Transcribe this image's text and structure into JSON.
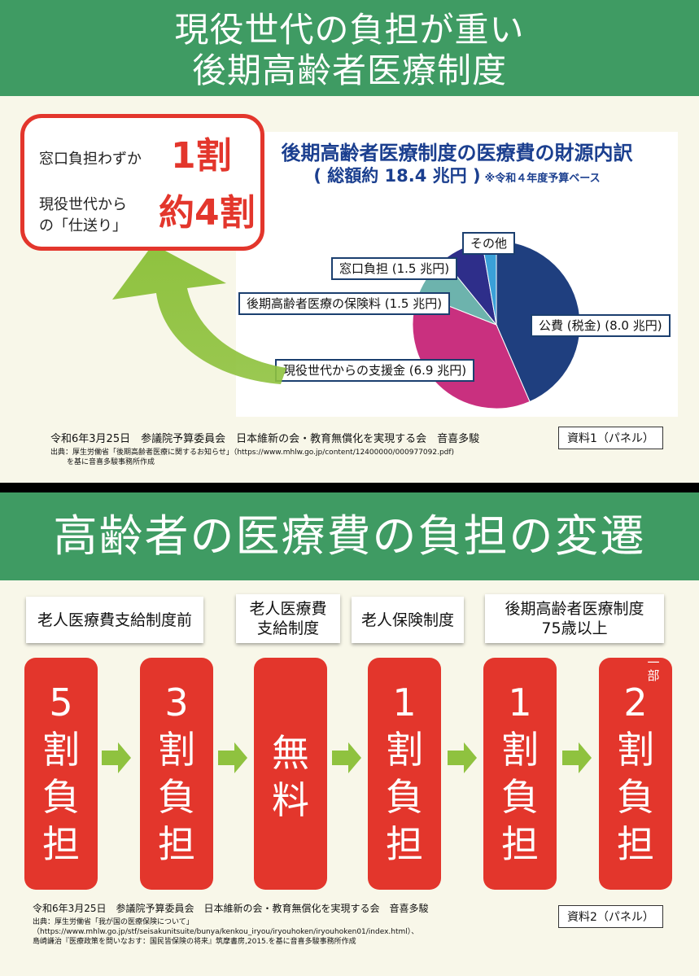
{
  "panel1": {
    "title_line1": "現役世代の負担が重い",
    "title_line2": "後期高齢者医療制度",
    "callout": {
      "row1_label": "窓口負担わずか",
      "row1_value": "1割",
      "row2_label_line1": "現役世代から",
      "row2_label_line2": "の「仕送り」",
      "row2_value": "約4割"
    },
    "chart_title_line1": "後期高齢者医療制度の医療費の財源内訳",
    "chart_title_line2": "( 総額約 18.4 兆円 )",
    "chart_note": "※令和４年度予算ベース",
    "footer_line": "令和6年3月25日　参議院予算委員会　日本維新の会・教育無償化を実現する会　音喜多駿",
    "source_line1": "出典：厚生労働省「後期高齢者医療に関するお知らせ」（https://www.mhlw.go.jp/content/12400000/000977092.pdf)",
    "source_line2": "を基に音喜多駿事務所作成",
    "tag": "資料1（パネル）"
  },
  "chart_data": {
    "type": "pie",
    "title": "後期高齢者医療制度の医療費の財源内訳",
    "subtitle": "( 総額約 18.4 兆円 )",
    "note": "※令和４年度予算ベース",
    "unit": "兆円",
    "slices": [
      {
        "label": "公費 (税金) (8.0 兆円)",
        "value": 8.0,
        "color": "#1f3f7f"
      },
      {
        "label": "現役世代からの支援金 (6.9 兆円)",
        "value": 6.9,
        "color": "#c9307f"
      },
      {
        "label": "後期高齢者医療の保険料 (1.5 兆円)",
        "value": 1.5,
        "color": "#6db3ad"
      },
      {
        "label": "窓口負担 (1.5 兆円)",
        "value": 1.5,
        "color": "#2e2e8a"
      },
      {
        "label": "その他",
        "value": 0.5,
        "color": "#3aa0d8"
      }
    ]
  },
  "panel2": {
    "title": "高齢者の医療費の負担の変遷",
    "stages": [
      "老人医療費支給制度前",
      "老人医療費\n支給制度",
      "老人保険制度",
      "後期高齢者医療制度\n75歳以上"
    ],
    "rates": [
      [
        "5",
        "割",
        "負",
        "担"
      ],
      [
        "3",
        "割",
        "負",
        "担"
      ],
      [
        "無",
        "料"
      ],
      [
        "1",
        "割",
        "負",
        "担"
      ],
      [
        "1",
        "割",
        "負",
        "担"
      ],
      [
        "2",
        "割",
        "負",
        "担"
      ]
    ],
    "partial_mark": "一部",
    "footer_line": "令和6年3月25日　参議院予算委員会　日本維新の会・教育無償化を実現する会　音喜多駿",
    "source_line1": "出典：厚生労働省「我が国の医療保険について」",
    "source_line2": "（https://www.mhlw.go.jp/stf/seisakunitsuite/bunya/kenkou_iryou/iryouhoken/iryouhoken01/index.html）、",
    "source_line3": "島崎謙治『医療政策を問いなおす：国民皆保険の将来』筑摩書房,2015.を基に音喜多駿事務所作成",
    "tag": "資料2（パネル）"
  }
}
